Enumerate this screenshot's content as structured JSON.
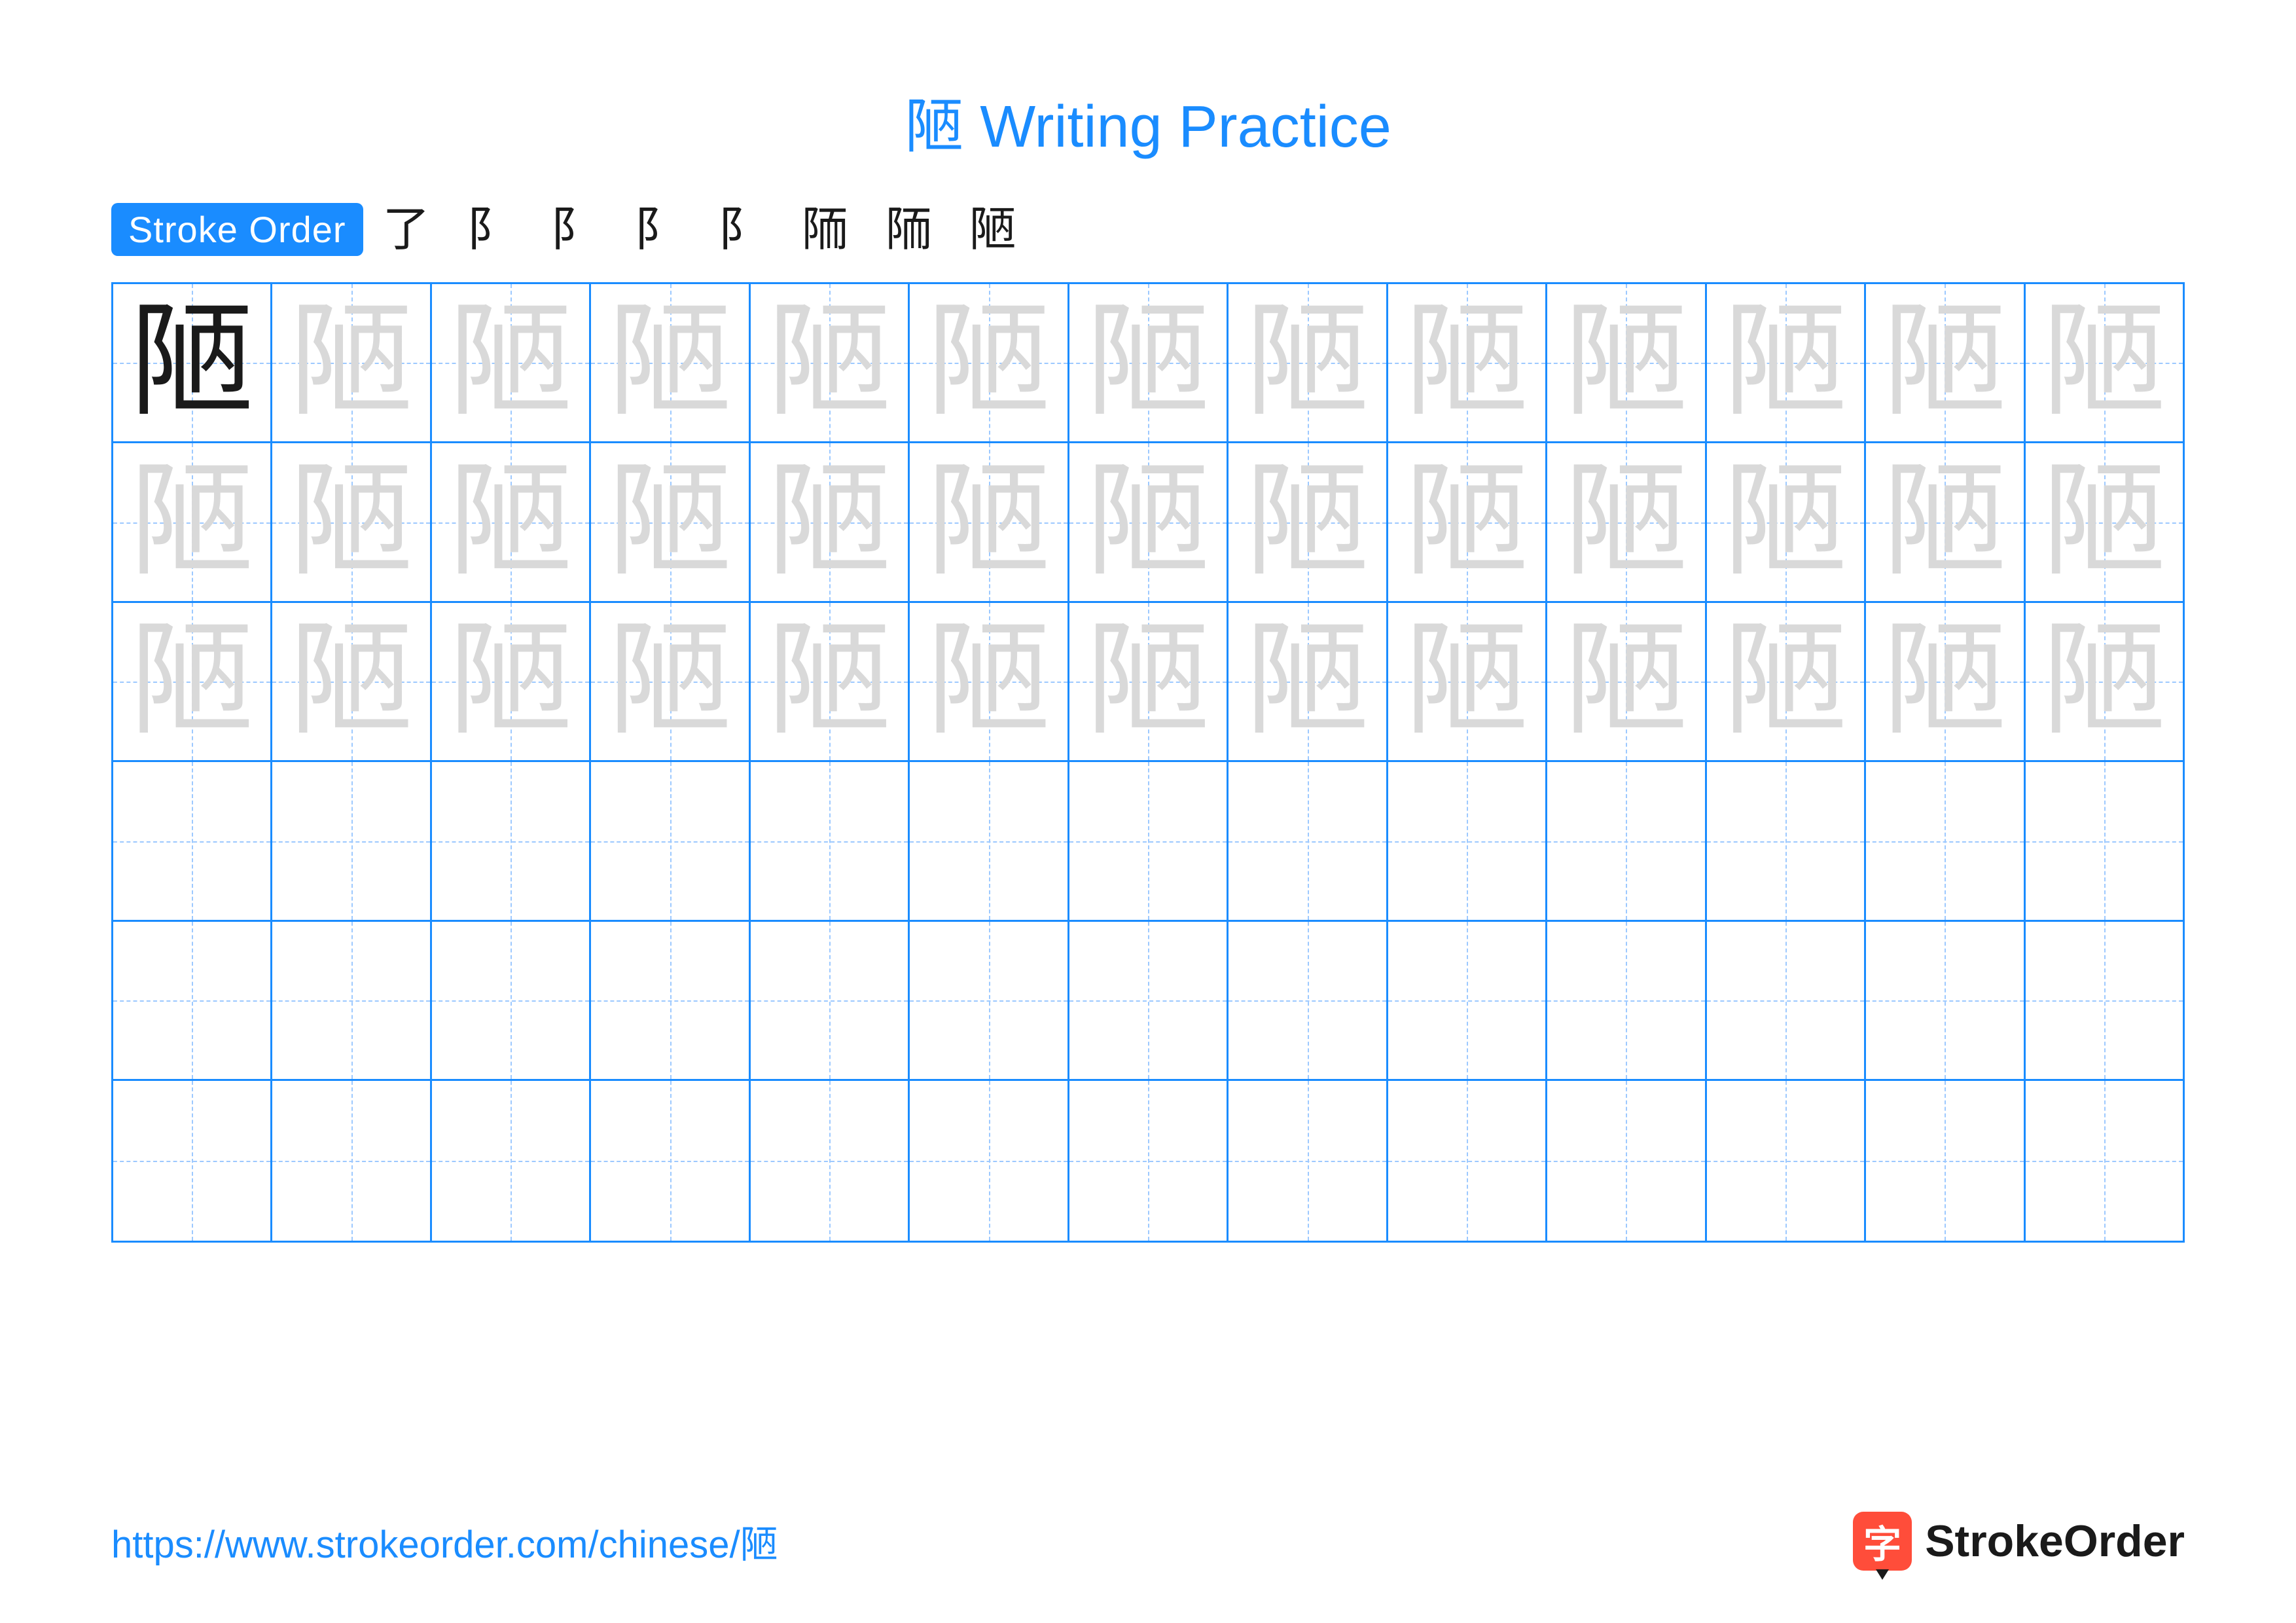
{
  "title": "陋 Writing Practice",
  "stroke_label": "Stroke Order",
  "character": "陋",
  "grid": {
    "rows": 6,
    "cols": 13,
    "trace_rows": 3,
    "blank_rows": 3
  },
  "stroke_steps": [
    "了",
    "阝",
    "阝",
    "阝",
    "阝",
    "陑",
    "陑",
    "陋"
  ],
  "footer_url": "https://www.strokeorder.com/chinese/陋",
  "brand_char": "字",
  "brand_text": "StrokeOrder",
  "colors": {
    "primary": "#1a8cff",
    "trace": "#d9d9d9",
    "guide": "#9dc9ff",
    "accent": "#ff4d3a",
    "text": "#1a1a1a"
  }
}
